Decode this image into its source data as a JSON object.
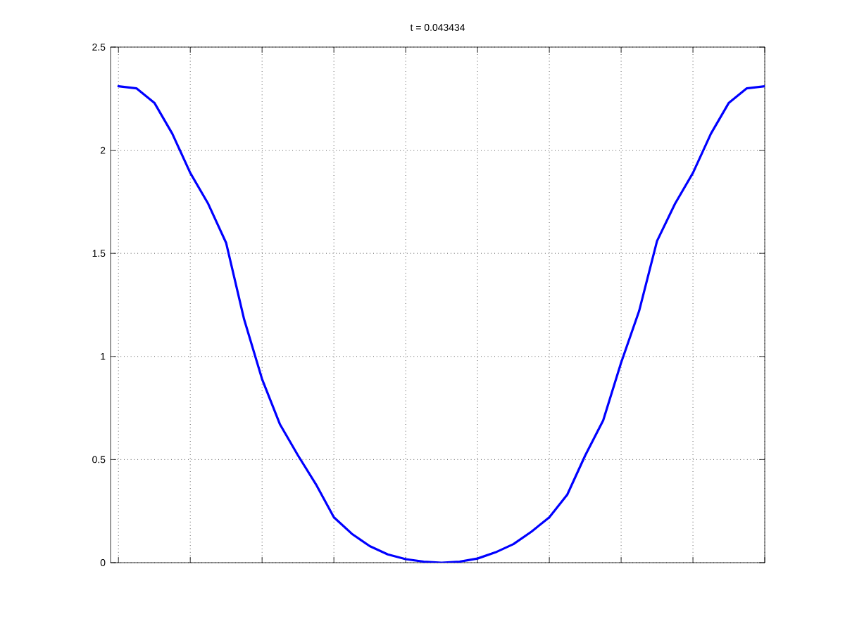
{
  "chart_data": {
    "type": "line",
    "title": "t = 0.043434",
    "categories": [
      null,
      null,
      null,
      null,
      null,
      null,
      null,
      null,
      null,
      null,
      null,
      null,
      null,
      null,
      null,
      null,
      null,
      null,
      null,
      null,
      null,
      null,
      null,
      null,
      null,
      null,
      null,
      null,
      null,
      null,
      null,
      null,
      null,
      null,
      null,
      null,
      null
    ],
    "series": [
      {
        "color": "#0000ff",
        "values": [
          2.31,
          2.3,
          2.23,
          2.08,
          1.89,
          1.74,
          1.55,
          1.18,
          0.89,
          0.67,
          0.52,
          0.38,
          0.22,
          0.14,
          0.08,
          0.04,
          0.017,
          0.005,
          0.0,
          0.005,
          0.02,
          0.05,
          0.09,
          0.15,
          0.22,
          0.33,
          0.52,
          0.69,
          0.97,
          1.22,
          1.56,
          1.74,
          1.89,
          2.08,
          2.23,
          2.3,
          2.31
        ]
      }
    ],
    "ylim": [
      0,
      2.5
    ],
    "yticks": [
      0,
      0.5,
      1,
      1.5,
      2,
      2.5
    ],
    "grid": true,
    "tick_labels": "y",
    "marker": "none",
    "line_style": "solid"
  }
}
